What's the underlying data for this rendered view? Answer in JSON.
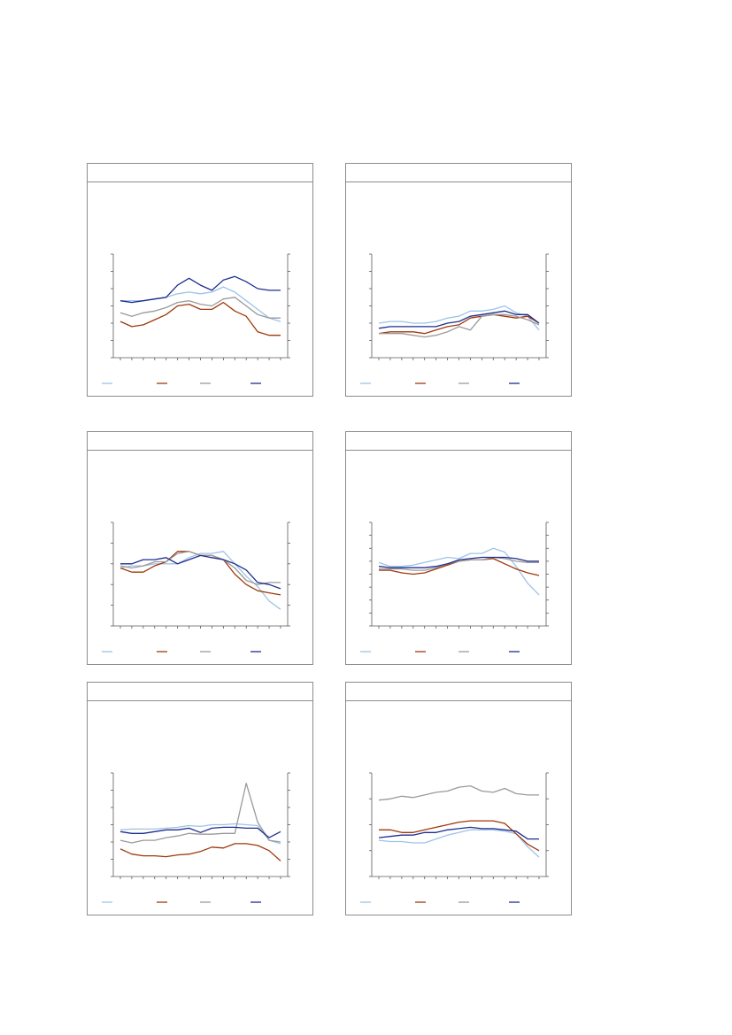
{
  "colors": {
    "series1": "#9dc3e6",
    "series2": "#a0380a",
    "series3": "#9a9a9a",
    "series4": "#1f2d8f",
    "axis": "#5a5a5a",
    "border": "#8c8c8c"
  },
  "chart_data": [
    {
      "type": "line",
      "title": "",
      "x": [
        1,
        2,
        3,
        4,
        5,
        6,
        7,
        8,
        9,
        10,
        11,
        12,
        13,
        14,
        15
      ],
      "ylim": [
        0,
        6
      ],
      "yticks": [
        0,
        1,
        2,
        3,
        4,
        5,
        6
      ],
      "series": [
        {
          "color": "series1",
          "values": [
            3.3,
            3.3,
            3.3,
            3.4,
            3.5,
            3.7,
            3.8,
            3.7,
            3.8,
            4.1,
            3.8,
            3.3,
            2.8,
            2.3,
            2.1
          ]
        },
        {
          "color": "series2",
          "values": [
            2.1,
            1.8,
            1.9,
            2.2,
            2.5,
            3.0,
            3.1,
            2.8,
            2.8,
            3.2,
            2.7,
            2.4,
            1.5,
            1.3,
            1.3
          ]
        },
        {
          "color": "series3",
          "values": [
            2.6,
            2.4,
            2.6,
            2.7,
            2.9,
            3.2,
            3.3,
            3.1,
            3.0,
            3.4,
            3.5,
            3.0,
            2.5,
            2.3,
            2.3
          ]
        },
        {
          "color": "series4",
          "values": [
            3.3,
            3.2,
            3.3,
            3.4,
            3.5,
            4.2,
            4.6,
            4.2,
            3.9,
            4.5,
            4.7,
            4.4,
            4.0,
            3.9,
            3.9
          ]
        }
      ]
    },
    {
      "type": "line",
      "title": "",
      "x": [
        1,
        2,
        3,
        4,
        5,
        6,
        7,
        8,
        9,
        10,
        11,
        12,
        13,
        14,
        15
      ],
      "ylim": [
        0,
        6
      ],
      "yticks": [
        0,
        1,
        2,
        3,
        4,
        5,
        6
      ],
      "series": [
        {
          "color": "series1",
          "values": [
            2.0,
            2.1,
            2.1,
            2.0,
            2.0,
            2.1,
            2.3,
            2.4,
            2.7,
            2.7,
            2.8,
            3.0,
            2.6,
            2.4,
            1.6
          ]
        },
        {
          "color": "series2",
          "values": [
            1.4,
            1.5,
            1.5,
            1.5,
            1.4,
            1.6,
            1.8,
            1.9,
            2.3,
            2.4,
            2.5,
            2.4,
            2.3,
            2.4,
            2.0
          ]
        },
        {
          "color": "series3",
          "values": [
            1.4,
            1.4,
            1.4,
            1.3,
            1.2,
            1.3,
            1.5,
            1.8,
            1.6,
            2.4,
            2.5,
            2.5,
            2.4,
            2.2,
            1.9
          ]
        },
        {
          "color": "series4",
          "values": [
            1.7,
            1.8,
            1.8,
            1.8,
            1.8,
            1.8,
            2.0,
            2.1,
            2.4,
            2.5,
            2.6,
            2.7,
            2.5,
            2.5,
            2.0
          ]
        }
      ]
    },
    {
      "type": "line",
      "title": "",
      "x": [
        1,
        2,
        3,
        4,
        5,
        6,
        7,
        8,
        9,
        10,
        11,
        12,
        13,
        14,
        15
      ],
      "ylim": [
        0,
        5
      ],
      "yticks": [
        0,
        1,
        2,
        3,
        4,
        5
      ],
      "series": [
        {
          "color": "series1",
          "values": [
            2.8,
            2.9,
            2.9,
            3.0,
            3.0,
            3.0,
            3.3,
            3.5,
            3.5,
            3.6,
            3.0,
            2.4,
            1.9,
            1.2,
            0.8
          ]
        },
        {
          "color": "series2",
          "values": [
            2.8,
            2.6,
            2.6,
            2.9,
            3.1,
            3.6,
            3.6,
            3.4,
            3.4,
            3.2,
            2.5,
            2.0,
            1.7,
            1.6,
            1.5
          ]
        },
        {
          "color": "series3",
          "values": [
            2.9,
            2.8,
            2.9,
            3.1,
            3.1,
            3.5,
            3.6,
            3.4,
            3.4,
            3.2,
            2.8,
            2.2,
            2.0,
            2.1,
            2.1
          ]
        },
        {
          "color": "series4",
          "values": [
            3.0,
            3.0,
            3.2,
            3.2,
            3.3,
            3.0,
            3.2,
            3.4,
            3.3,
            3.2,
            3.0,
            2.7,
            2.1,
            2.0,
            1.8
          ]
        }
      ]
    },
    {
      "type": "line",
      "title": "",
      "x": [
        1,
        2,
        3,
        4,
        5,
        6,
        7,
        8,
        9,
        10,
        11,
        12,
        13,
        14,
        15
      ],
      "ylim": [
        0,
        8
      ],
      "yticks": [
        0,
        1,
        2,
        3,
        4,
        5,
        6,
        7,
        8
      ],
      "series": [
        {
          "color": "series1",
          "values": [
            4.9,
            4.6,
            4.6,
            4.7,
            4.9,
            5.1,
            5.3,
            5.2,
            5.6,
            5.6,
            6.0,
            5.7,
            4.6,
            3.3,
            2.4
          ]
        },
        {
          "color": "series2",
          "values": [
            4.3,
            4.3,
            4.1,
            4.0,
            4.1,
            4.4,
            4.7,
            5.0,
            5.1,
            5.1,
            5.2,
            4.8,
            4.4,
            4.1,
            3.9
          ]
        },
        {
          "color": "series3",
          "values": [
            4.4,
            4.4,
            4.4,
            4.3,
            4.3,
            4.5,
            4.8,
            5.0,
            5.1,
            5.1,
            5.3,
            5.2,
            5.0,
            4.9,
            4.9
          ]
        },
        {
          "color": "series4",
          "values": [
            4.6,
            4.5,
            4.5,
            4.5,
            4.5,
            4.6,
            4.8,
            5.1,
            5.2,
            5.3,
            5.3,
            5.3,
            5.2,
            5.0,
            5.0
          ]
        }
      ]
    },
    {
      "type": "line",
      "title": "",
      "x": [
        1,
        2,
        3,
        4,
        5,
        6,
        7,
        8,
        9,
        10,
        11,
        12,
        13,
        14,
        15
      ],
      "ylim": [
        0,
        12
      ],
      "yticks": [
        0,
        2,
        4,
        6,
        8,
        10,
        12
      ],
      "series": [
        {
          "color": "series1",
          "values": [
            5.4,
            5.5,
            5.5,
            5.5,
            5.6,
            5.7,
            5.9,
            5.8,
            6.0,
            6.0,
            6.1,
            6.0,
            5.9,
            4.2,
            3.8
          ]
        },
        {
          "color": "series2",
          "values": [
            3.2,
            2.6,
            2.4,
            2.4,
            2.3,
            2.5,
            2.6,
            2.9,
            3.4,
            3.3,
            3.8,
            3.8,
            3.6,
            3.0,
            1.8
          ]
        },
        {
          "color": "series3",
          "values": [
            4.2,
            3.9,
            4.2,
            4.2,
            4.5,
            4.7,
            5.0,
            4.9,
            4.9,
            5.0,
            5.0,
            10.8,
            6.3,
            4.2,
            4.0
          ]
        },
        {
          "color": "series4",
          "values": [
            5.2,
            5.0,
            5.0,
            5.2,
            5.4,
            5.4,
            5.6,
            5.1,
            5.6,
            5.7,
            5.7,
            5.6,
            5.6,
            4.5,
            5.2
          ]
        }
      ]
    },
    {
      "type": "line",
      "title": "",
      "x": [
        1,
        2,
        3,
        4,
        5,
        6,
        7,
        8,
        9,
        10,
        11,
        12,
        13,
        14,
        15
      ],
      "ylim": [
        0,
        8
      ],
      "yticks": [
        0,
        2,
        4,
        6,
        8
      ],
      "series": [
        {
          "color": "series1",
          "values": [
            2.8,
            2.7,
            2.7,
            2.6,
            2.6,
            2.9,
            3.2,
            3.4,
            3.6,
            3.6,
            3.6,
            3.5,
            3.3,
            2.3,
            1.5
          ]
        },
        {
          "color": "series2",
          "values": [
            3.6,
            3.6,
            3.4,
            3.4,
            3.6,
            3.8,
            4.0,
            4.2,
            4.3,
            4.3,
            4.3,
            4.1,
            3.3,
            2.5,
            2.0
          ]
        },
        {
          "color": "series3",
          "values": [
            5.9,
            6.0,
            6.2,
            6.1,
            6.3,
            6.5,
            6.6,
            6.9,
            7.0,
            6.6,
            6.5,
            6.8,
            6.4,
            6.3,
            6.3
          ]
        },
        {
          "color": "series4",
          "values": [
            3.0,
            3.1,
            3.2,
            3.2,
            3.4,
            3.4,
            3.6,
            3.7,
            3.8,
            3.7,
            3.7,
            3.6,
            3.5,
            2.9,
            2.9
          ]
        }
      ]
    }
  ]
}
